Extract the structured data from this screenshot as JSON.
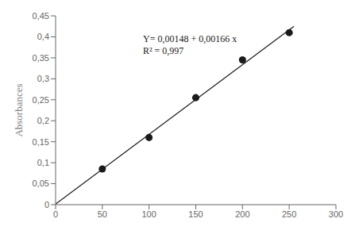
{
  "chart_data": {
    "type": "scatter",
    "ylabel": "Absorbances",
    "annotations": [
      "Y= 0,00148 + 0,00166 x",
      "R² = 0,997"
    ],
    "series": [
      {
        "type": "scatter",
        "marker": "circle",
        "color": "#1a1a1a",
        "x": [
          50,
          100,
          150,
          200,
          250
        ],
        "values": [
          0.085,
          0.16,
          0.255,
          0.345,
          0.41
        ]
      },
      {
        "type": "line",
        "line_style": "solid",
        "color": "#1a1a1a",
        "x": [
          0,
          255
        ],
        "values": [
          0.00148,
          0.42478
        ]
      }
    ],
    "xlim": [
      0,
      300
    ],
    "ylim": [
      0,
      0.45
    ],
    "xticks": [
      0,
      50,
      100,
      150,
      200,
      250,
      300
    ],
    "yticks": [
      0,
      {
        "value": 0.05,
        "label": "0,05"
      },
      {
        "value": 0.1,
        "label": "0,1"
      },
      {
        "value": 0.15,
        "label": "0,15"
      },
      {
        "value": 0.2,
        "label": "0,2"
      },
      {
        "value": 0.25,
        "label": "0,25"
      },
      {
        "value": 0.3,
        "label": "0,3"
      },
      {
        "value": 0.35,
        "label": "0,35"
      },
      {
        "value": 0.4,
        "label": "0,4"
      },
      {
        "value": 0.45,
        "label": "0,45"
      }
    ],
    "grid": false
  }
}
